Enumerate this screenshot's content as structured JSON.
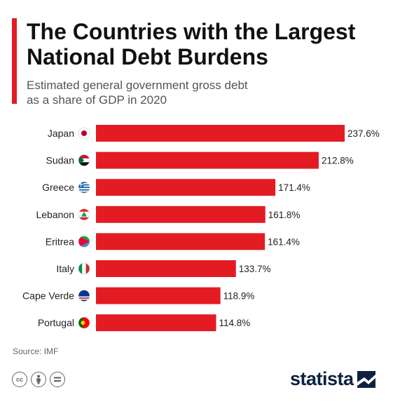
{
  "header": {
    "title_line1": "The Countries with the Largest",
    "title_line2": "National Debt Burdens",
    "subtitle_line1": "Estimated general government gross debt",
    "subtitle_line2": "as a share of GDP in 2020"
  },
  "footer": {
    "source": "Source: IMF",
    "brand": "statista",
    "license_icons": [
      "cc-icon",
      "by-icon",
      "nd-icon"
    ]
  },
  "colors": {
    "bar": "#e31b23",
    "accent": "#e31b23",
    "brand": "#0d2240"
  },
  "chart_data": {
    "type": "bar",
    "orientation": "horizontal",
    "categories": [
      "Japan",
      "Sudan",
      "Greece",
      "Lebanon",
      "Eritrea",
      "Italy",
      "Cape Verde",
      "Portugal"
    ],
    "values": [
      237.6,
      212.8,
      171.4,
      161.8,
      161.4,
      133.7,
      118.9,
      114.8
    ],
    "value_labels": [
      "237.6%",
      "212.8%",
      "171.4%",
      "161.8%",
      "161.4%",
      "133.7%",
      "118.9%",
      "114.8%"
    ],
    "flags": [
      "japan-flag-icon",
      "sudan-flag-icon",
      "greece-flag-icon",
      "lebanon-flag-icon",
      "eritrea-flag-icon",
      "italy-flag-icon",
      "cape-verde-flag-icon",
      "portugal-flag-icon"
    ],
    "xlim": [
      0,
      237.6
    ],
    "grid": false
  }
}
